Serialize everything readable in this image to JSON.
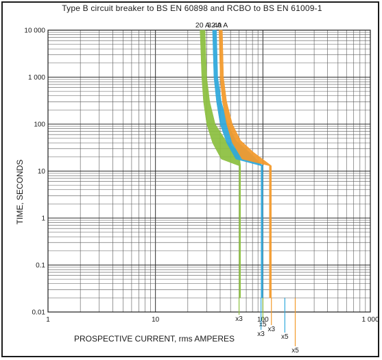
{
  "chart_data": {
    "type": "area",
    "title": "Type B circuit breaker to BS EN 60898 and RCBO to BS EN 61009-1",
    "xlabel": "PROSPECTIVE CURRENT, rms AMPERES",
    "ylabel": "TIME, SECONDS",
    "x_scale": "log",
    "y_scale": "log",
    "xlim": [
      1,
      1000
    ],
    "ylim": [
      0.01,
      10000
    ],
    "grid": true,
    "x_ticks": [
      {
        "value": 1,
        "label": "1"
      },
      {
        "value": 10,
        "label": "10"
      },
      {
        "value": 100,
        "label": "100"
      },
      {
        "value": 1000,
        "label": "1 000"
      }
    ],
    "y_ticks": [
      {
        "value": 10000,
        "label": "10 000"
      },
      {
        "value": 1000,
        "label": "1 000"
      },
      {
        "value": 100,
        "label": "100"
      },
      {
        "value": 10,
        "label": "10"
      },
      {
        "value": 1,
        "label": "1"
      },
      {
        "value": 0.1,
        "label": "0.1"
      },
      {
        "value": 0.01,
        "label": "0.01"
      }
    ],
    "series": [
      {
        "name": "20 A",
        "color": "#8cbf3f",
        "upper": [
          [
            29,
            10000
          ],
          [
            30,
            1000
          ],
          [
            32,
            300
          ],
          [
            36,
            100
          ],
          [
            45,
            45
          ],
          [
            60,
            25
          ],
          [
            62,
            13
          ],
          [
            62,
            0.02
          ]
        ],
        "lower": [
          [
            26,
            10000
          ],
          [
            27,
            1000
          ],
          [
            28,
            300
          ],
          [
            30,
            100
          ],
          [
            34,
            40
          ],
          [
            41,
            18
          ],
          [
            60,
            13
          ],
          [
            60,
            0.02
          ]
        ],
        "multiples": [
          {
            "label": "x3",
            "current": 60
          },
          {
            "label": "x5",
            "current": 100
          }
        ]
      },
      {
        "name": "32 A",
        "color": "#2ea8dc",
        "upper": [
          [
            37,
            10000
          ],
          [
            38,
            1000
          ],
          [
            41,
            300
          ],
          [
            47,
            100
          ],
          [
            56,
            45
          ],
          [
            75,
            25
          ],
          [
            100,
            13
          ],
          [
            100,
            0.02
          ]
        ],
        "lower": [
          [
            34,
            10000
          ],
          [
            35,
            1000
          ],
          [
            37,
            300
          ],
          [
            40,
            100
          ],
          [
            46,
            40
          ],
          [
            56,
            18
          ],
          [
            96,
            13
          ],
          [
            96,
            0.02
          ]
        ],
        "multiples": [
          {
            "label": "x3",
            "current": 96
          },
          {
            "label": "x5",
            "current": 160
          }
        ]
      },
      {
        "name": "40 A",
        "color": "#f39a2b",
        "upper": [
          [
            42,
            10000
          ],
          [
            43,
            1000
          ],
          [
            46,
            300
          ],
          [
            52,
            100
          ],
          [
            62,
            45
          ],
          [
            82,
            25
          ],
          [
            120,
            13
          ],
          [
            120,
            0.02
          ]
        ],
        "lower": [
          [
            39,
            10000
          ],
          [
            40,
            1000
          ],
          [
            42,
            300
          ],
          [
            46,
            100
          ],
          [
            52,
            40
          ],
          [
            64,
            18
          ],
          [
            115,
            13
          ],
          [
            115,
            0.02
          ]
        ],
        "multiples": [
          {
            "label": "x3",
            "current": 120
          },
          {
            "label": "x5",
            "current": 200
          }
        ]
      }
    ]
  }
}
